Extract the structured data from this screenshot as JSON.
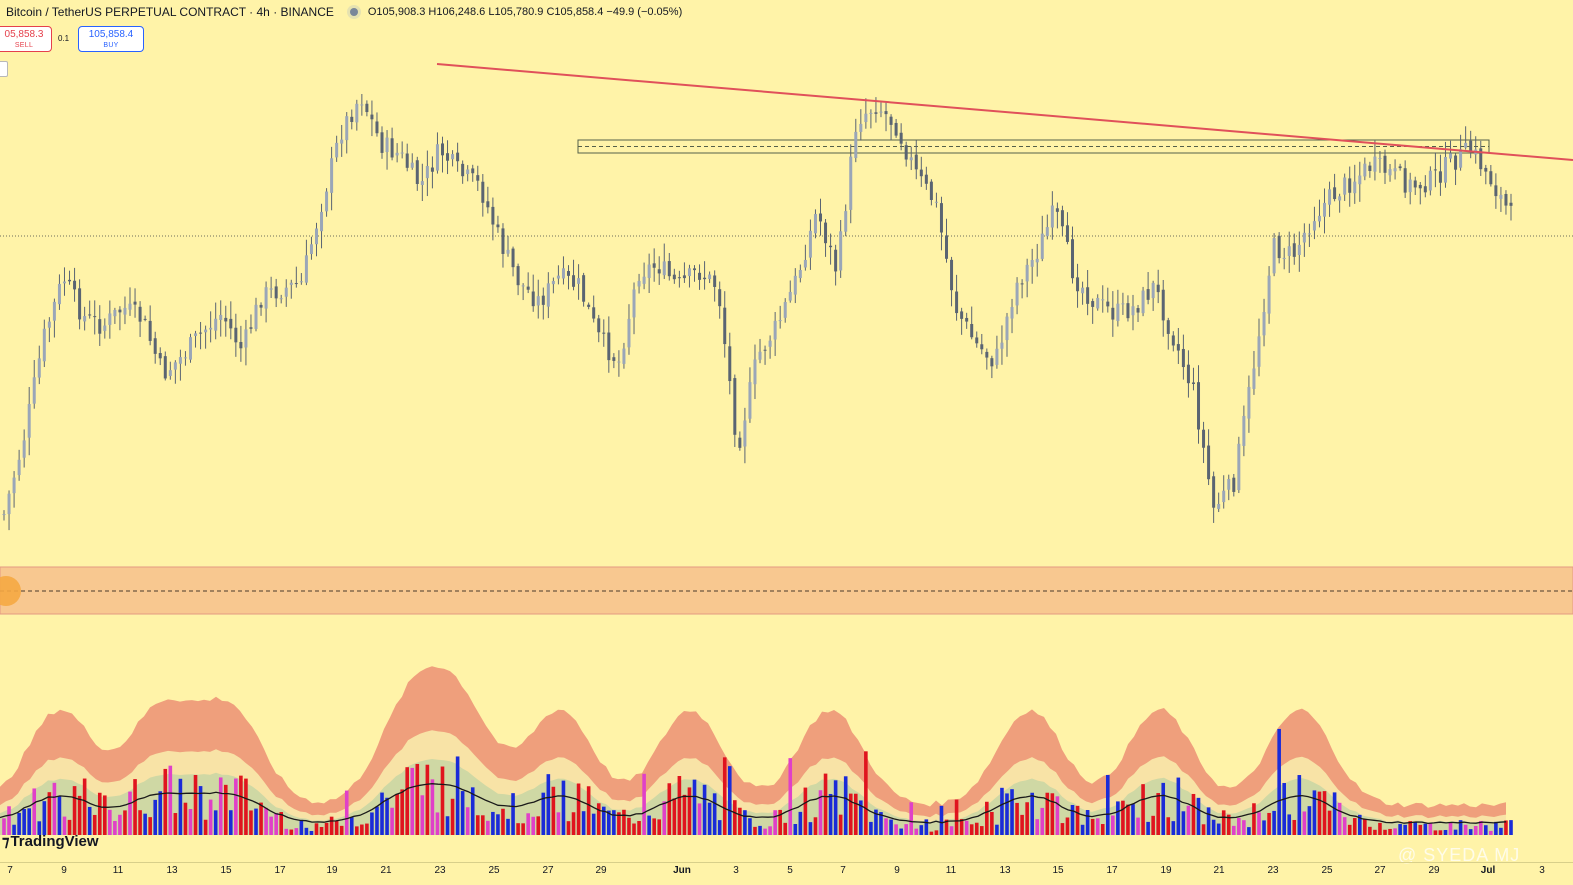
{
  "header": {
    "symbol": "Bitcoin / TetherUS PERPETUAL CONTRACT · 4h · BINANCE",
    "ohlc": "O105,908.3 H106,248.6 L105,780.9 C105,858.4 −49.9 (−0.05%)"
  },
  "trade": {
    "sell_price": "05,858.3",
    "sell_label": "SELL",
    "quantity": "0.1",
    "buy_price": "105,858.4",
    "buy_label": "BUY"
  },
  "branding": {
    "logo": "TradingView",
    "watermark": "@ SYEDA MJ"
  },
  "colors": {
    "background": "#fff3a8",
    "candle": "#5a6472",
    "trendline": "#e0505a",
    "zone_fill": "#f8c890",
    "volume_up": "#1a2bd8",
    "volume_down": "#e0141e",
    "volume_pink": "#e040c8",
    "band_outer": "#ef9f7c",
    "band_mid": "#f8e3a6",
    "band_inner": "#cfd8a4"
  },
  "chart_data": {
    "type": "candlestick",
    "price_close_series": [
      0.2,
      0.45,
      0.78,
      0.98,
      0.85,
      0.82,
      0.88,
      0.84,
      0.66,
      0.72,
      0.8,
      0.86,
      0.74,
      0.92,
      0.94,
      0.96,
      1.22,
      1.46,
      1.58,
      1.42,
      1.38,
      1.28,
      1.4,
      1.32,
      1.28,
      1.1,
      0.96,
      0.9,
      0.98,
      0.95,
      0.78,
      0.7,
      1.0,
      1.02,
      0.95,
      1.0,
      0.95,
      0.42,
      0.72,
      0.82,
      0.98,
      1.2,
      1.0,
      1.5,
      1.55,
      1.48,
      1.32,
      1.22,
      0.88,
      0.76,
      0.7,
      0.95,
      1.05,
      1.2,
      0.98,
      0.9,
      0.86,
      0.88,
      0.95,
      0.78,
      0.6,
      0.22,
      0.3,
      0.68,
      1.08,
      1.05,
      1.18,
      1.25,
      1.3,
      1.35,
      1.32,
      1.28,
      1.3,
      1.36,
      1.4,
      1.3,
      1.18
    ],
    "trendline_label": "",
    "x_axis_labels": [
      "7",
      "9",
      "11",
      "13",
      "15",
      "17",
      "19",
      "21",
      "23",
      "25",
      "27",
      "29",
      "Jun",
      "3",
      "5",
      "7",
      "9",
      "11",
      "13",
      "15",
      "17",
      "19",
      "21",
      "23",
      "25",
      "27",
      "29",
      "Jul",
      "3"
    ],
    "volume_indicator": {
      "type": "bar",
      "colors": [
        "blue",
        "red",
        "pink"
      ],
      "band_series": true
    }
  }
}
